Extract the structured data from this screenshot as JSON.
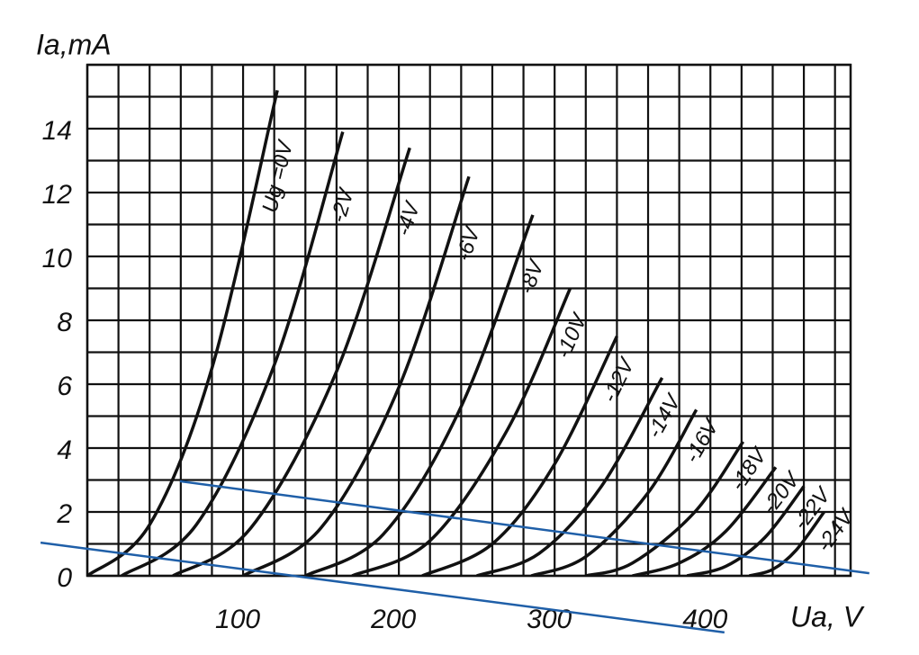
{
  "chart_data": {
    "type": "line",
    "y_label": "Ia,mA",
    "x_label": "Ua, V",
    "xlim": [
      0,
      490
    ],
    "ylim": [
      0,
      16
    ],
    "xticks": [
      100,
      200,
      300,
      400
    ],
    "yticks": [
      0,
      2,
      4,
      6,
      8,
      10,
      12,
      14
    ],
    "xgrid": [
      0,
      20,
      40,
      60,
      80,
      100,
      120,
      140,
      160,
      180,
      200,
      220,
      240,
      260,
      280,
      300,
      320,
      340,
      360,
      380,
      400,
      420,
      440,
      460,
      480
    ],
    "ygrid": [
      0,
      1,
      2,
      3,
      4,
      5,
      6,
      7,
      8,
      9,
      10,
      11,
      12,
      13,
      14,
      15,
      16
    ],
    "grid": true,
    "series": [
      {
        "name": "Ug =0V",
        "color": "#111111",
        "x": [
          0,
          40,
          80,
          122
        ],
        "values": [
          0,
          1.6,
          6.5,
          15.2
        ]
      },
      {
        "name": "-2V",
        "color": "#111111",
        "x": [
          22,
          70,
          120,
          164
        ],
        "values": [
          0,
          1.6,
          6.6,
          13.9
        ]
      },
      {
        "name": "-4V",
        "color": "#111111",
        "x": [
          55,
          105,
          160,
          207
        ],
        "values": [
          0,
          1.5,
          6.4,
          13.4
        ]
      },
      {
        "name": "-6V",
        "color": "#111111",
        "x": [
          100,
          150,
          200,
          245
        ],
        "values": [
          0,
          1.5,
          5.9,
          12.5
        ]
      },
      {
        "name": "-8V",
        "color": "#111111",
        "x": [
          140,
          190,
          240,
          286
        ],
        "values": [
          0,
          1.3,
          5.3,
          11.3
        ]
      },
      {
        "name": "-10V",
        "color": "#111111",
        "x": [
          170,
          220,
          270,
          310
        ],
        "values": [
          0,
          1.1,
          4.6,
          9.0
        ]
      },
      {
        "name": "-12V",
        "color": "#111111",
        "x": [
          215,
          260,
          300,
          340
        ],
        "values": [
          0,
          1.0,
          3.5,
          7.5
        ]
      },
      {
        "name": "-14V",
        "color": "#111111",
        "x": [
          250,
          290,
          330,
          369
        ],
        "values": [
          0,
          0.7,
          2.8,
          6.2
        ]
      },
      {
        "name": "-16V",
        "color": "#111111",
        "x": [
          285,
          320,
          360,
          391
        ],
        "values": [
          0,
          0.6,
          2.6,
          5.2
        ]
      },
      {
        "name": "-18V",
        "color": "#111111",
        "x": [
          320,
          350,
          390,
          421
        ],
        "values": [
          0,
          0.4,
          2.0,
          4.2
        ]
      },
      {
        "name": "-20V",
        "color": "#111111",
        "x": [
          350,
          380,
          410,
          442
        ],
        "values": [
          0,
          0.4,
          1.4,
          3.4
        ]
      },
      {
        "name": "-22V",
        "color": "#111111",
        "x": [
          385,
          410,
          435,
          460
        ],
        "values": [
          0,
          0.3,
          1.2,
          2.8
        ]
      },
      {
        "name": "-24V",
        "color": "#111111",
        "x": [
          425,
          440,
          455,
          473
        ],
        "values": [
          0,
          0.2,
          0.8,
          2.0
        ]
      }
    ],
    "load_lines": [
      {
        "color": "#1f5fa8",
        "x": [
          -30,
          409
        ],
        "values": [
          1.04,
          -1.77
        ]
      },
      {
        "color": "#1f5fa8",
        "x": [
          59.5,
          502
        ],
        "values": [
          2.96,
          0.08
        ]
      }
    ]
  }
}
